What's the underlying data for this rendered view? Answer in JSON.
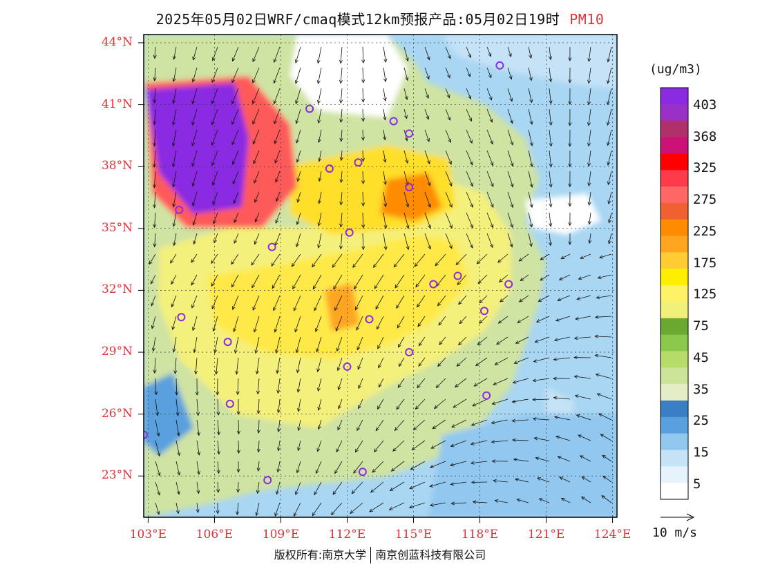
{
  "title": {
    "main": "2025年05月02日WRF/cmaq模式12km预报产品:05月02日19时",
    "variable": "PM10"
  },
  "map": {
    "lon_range": [
      102.8,
      124.2
    ],
    "lat_range": [
      21.0,
      44.4
    ],
    "lat_ticks": [
      "44°N",
      "41°N",
      "38°N",
      "35°N",
      "32°N",
      "29°N",
      "26°N",
      "23°N"
    ],
    "lon_ticks": [
      "103°E",
      "106°E",
      "109°E",
      "112°E",
      "115°E",
      "118°E",
      "121°E",
      "124°E"
    ],
    "monitoring_sites": [
      [
        118.9,
        42.9
      ],
      [
        110.3,
        40.8
      ],
      [
        114.1,
        40.2
      ],
      [
        114.8,
        39.6
      ],
      [
        111.2,
        37.9
      ],
      [
        112.5,
        38.2
      ],
      [
        114.8,
        37.0
      ],
      [
        104.4,
        35.9
      ],
      [
        112.1,
        34.8
      ],
      [
        108.6,
        34.1
      ],
      [
        115.9,
        32.3
      ],
      [
        117.0,
        32.7
      ],
      [
        119.3,
        32.3
      ],
      [
        118.2,
        31.0
      ],
      [
        104.5,
        30.7
      ],
      [
        113.0,
        30.6
      ],
      [
        106.6,
        29.5
      ],
      [
        112.0,
        28.3
      ],
      [
        114.8,
        29.0
      ],
      [
        118.3,
        26.9
      ],
      [
        106.7,
        26.5
      ],
      [
        102.8,
        25.0
      ],
      [
        108.4,
        22.8
      ],
      [
        112.7,
        23.2
      ]
    ],
    "site_color": "#8a2be2",
    "ocean_color": "#cfe8f8"
  },
  "legend": {
    "unit": "(ug/m3)",
    "labels": [
      "403",
      "368",
      "325",
      "275",
      "225",
      "175",
      "125",
      "75",
      "45",
      "35",
      "25",
      "15",
      "5"
    ],
    "colors": [
      "#8a2be2",
      "#9b30c8",
      "#b0306a",
      "#cc1177",
      "#ff0000",
      "#ff3a4a",
      "#ff6666",
      "#f06030",
      "#ff8c00",
      "#ffa520",
      "#ffcc33",
      "#ffee00",
      "#fff266",
      "#f0f07a",
      "#6aa832",
      "#8cc84b",
      "#b8dc6a",
      "#cce39a",
      "#e4edc8",
      "#3a7fc6",
      "#5aa0de",
      "#92c8ef",
      "#c5e2f7",
      "#e6f3fc",
      "#ffffff"
    ]
  },
  "wind_reference": "10 m/s",
  "copyright": {
    "left": "版权所有:南京大学",
    "right": "南京创蓝科技有限公司"
  }
}
